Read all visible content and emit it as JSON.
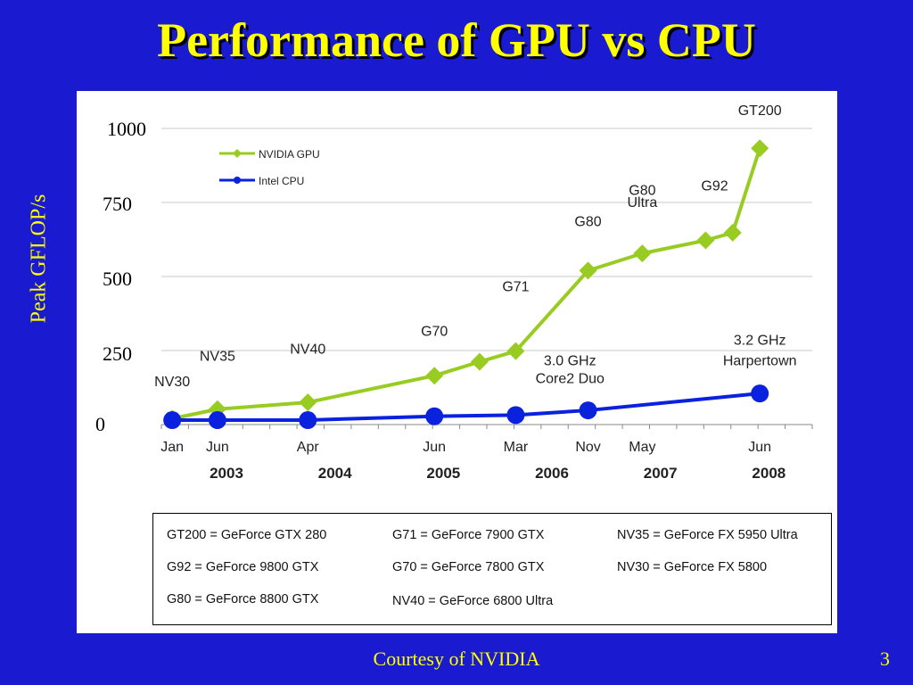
{
  "slide": {
    "title": "Performance of GPU vs CPU",
    "side_label": "Peak GFLOP/s",
    "footer": "Courtesy of NVIDIA",
    "page_number": "3"
  },
  "colors": {
    "background": "#1a1ad0",
    "title": "#ffff00",
    "gpu_series": "#99cc22",
    "cpu_series": "#0a22dd"
  },
  "chart_data": {
    "type": "line",
    "ylim": [
      0,
      1000
    ],
    "yticks": [
      "0",
      "250",
      "500",
      "750",
      "1000"
    ],
    "x_month_labels": [
      "Jan",
      "Jun",
      "Apr",
      "Jun",
      "Mar",
      "Nov",
      "May",
      "Jun"
    ],
    "x_year_labels": [
      "2003",
      "2004",
      "2005",
      "2006",
      "2007",
      "2008"
    ],
    "grid": true,
    "legend_position": "top-left",
    "series": [
      {
        "name": "NVIDIA GPU",
        "points": [
          {
            "x": "2003-01",
            "y": 20
          },
          {
            "x": "2003-06",
            "y": 52
          },
          {
            "x": "2004-04",
            "y": 75
          },
          {
            "x": "2005-06",
            "y": 165
          },
          {
            "x": "2005-11",
            "y": 212
          },
          {
            "x": "2006-03",
            "y": 248
          },
          {
            "x": "2006-11",
            "y": 520
          },
          {
            "x": "2007-05",
            "y": 578
          },
          {
            "x": "2007-12",
            "y": 622
          },
          {
            "x": "2008-03",
            "y": 648
          },
          {
            "x": "2008-06",
            "y": 933
          }
        ]
      },
      {
        "name": "Intel CPU",
        "points": [
          {
            "x": "2003-01",
            "y": 15
          },
          {
            "x": "2003-06",
            "y": 15
          },
          {
            "x": "2004-04",
            "y": 15
          },
          {
            "x": "2005-06",
            "y": 28
          },
          {
            "x": "2006-03",
            "y": 32
          },
          {
            "x": "2006-11",
            "y": 48
          },
          {
            "x": "2008-06",
            "y": 105
          }
        ]
      }
    ],
    "annotations": [
      {
        "text": "NV30",
        "x": "2003-01",
        "y": 130
      },
      {
        "text": "NV35",
        "x": "2003-06",
        "y": 215
      },
      {
        "text": "NV40",
        "x": "2004-04",
        "y": 240
      },
      {
        "text": "G70",
        "x": "2005-06",
        "y": 300
      },
      {
        "text": "G71",
        "x": "2006-03",
        "y": 450
      },
      {
        "text": "G80",
        "x": "2006-11",
        "y": 670
      },
      {
        "text": "G80",
        "x": "2007-05",
        "y": 775
      },
      {
        "text": "Ultra",
        "x": "2007-05",
        "y": 735
      },
      {
        "text": "G92",
        "x": "2008-01",
        "y": 790
      },
      {
        "text": "GT200",
        "x": "2008-06",
        "y": 1045
      },
      {
        "text": "3.0 GHz",
        "x": "2006-09",
        "y": 200
      },
      {
        "text": "Core2 Duo",
        "x": "2006-09",
        "y": 140
      },
      {
        "text": "3.2 GHz",
        "x": "2008-06",
        "y": 270
      },
      {
        "text": "Harpertown",
        "x": "2008-06",
        "y": 200
      }
    ]
  },
  "glossary": [
    "GT200 = GeForce GTX 280",
    "G92 = GeForce 9800 GTX",
    "G80 = GeForce 8800 GTX",
    "G71 = GeForce 7900 GTX",
    "G70 = GeForce 7800 GTX",
    "NV40 = GeForce 6800 Ultra",
    "NV35 = GeForce FX 5950 Ultra",
    "NV30 = GeForce FX 5800"
  ]
}
